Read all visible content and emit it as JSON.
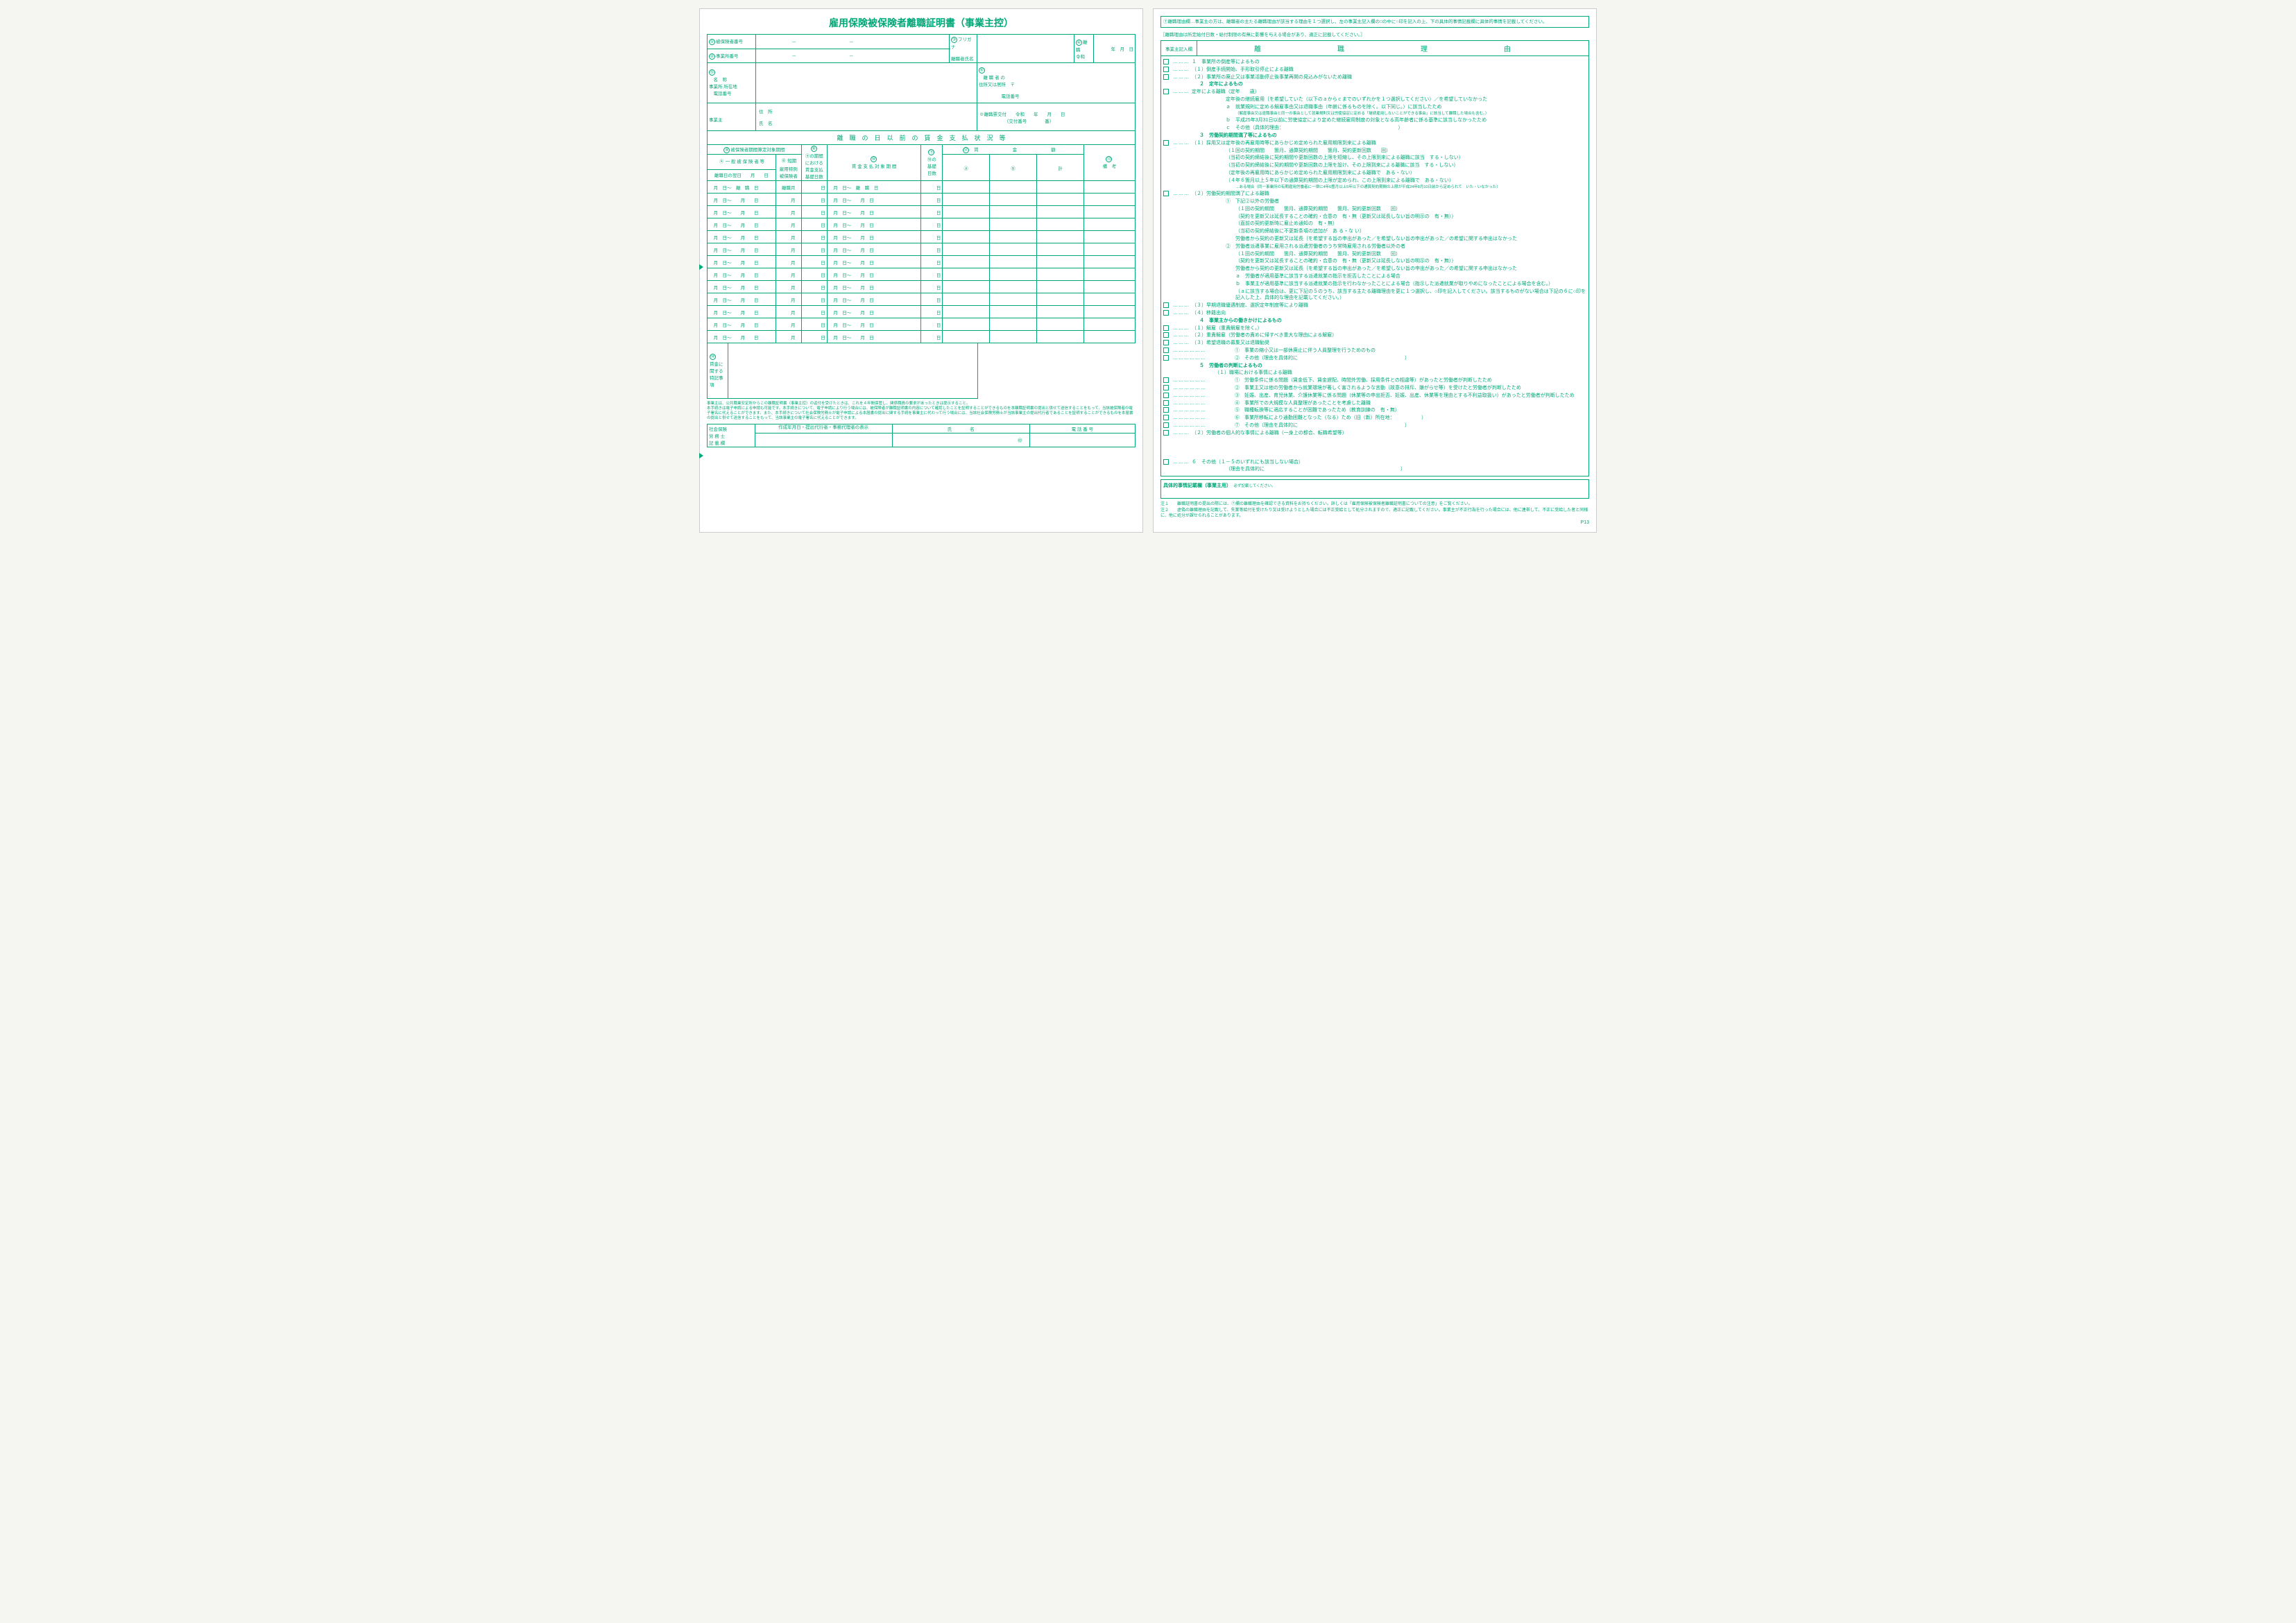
{
  "colors": {
    "ink": "#00a878",
    "paper": "#ffffff",
    "bg": "#f5f5f2"
  },
  "left": {
    "title": "雇用保険被保険者離職証明書（事業主控）",
    "labels": {
      "f1": "被保険者番号",
      "f2": "事業所番号",
      "f3": "フリガナ",
      "f3b": "離職者氏名",
      "f4": "離　職",
      "f4era": "令和",
      "f4ymd": "年　月　日",
      "f5": "名　称",
      "f5b": "事業所 所在地",
      "f5c": "電話番号",
      "f6": "離 職 者 の",
      "f6b": "住所又は居所",
      "f6c": "〒",
      "f6d": "電話番号",
      "f7a": "※離職票交付",
      "f7b": "令和　　年　　月　　日",
      "f7c": "（交付番号　　　　番）",
      "owner": "事業主",
      "ownerAddr": "住　所",
      "ownerName": "氏　名",
      "section": "離　職　の　日　以　前　の　賃　金　支　払　状　況　等",
      "c8": "被保険者期間算定対象期間",
      "c9": "⑨の期間",
      "c9a": "における",
      "c9b": "賃金支払",
      "c9c": "基礎日数",
      "c8a": "一 般 被 保 険 者 等",
      "c8b": "短期",
      "c8c": "雇用特例",
      "c8d": "被保険者",
      "c10": "賃 金 支 払 対 象 期 間",
      "c11": "⑩の",
      "c11b": "基礎",
      "c11c": "日数",
      "c12": "賃　　金　　額",
      "c12a": "Ⓐ",
      "c12b": "Ⓑ",
      "c12c": "計",
      "c13": "備　考",
      "dateHdr": "離職日の翌日　　月　　日",
      "f14": "賃金に",
      "f14b": "関する",
      "f14c": "特記事項",
      "bottomNote": "事業主は、公共職業安定所からこの離職証明書（事業主控）の返付を受けたときは、これを４年間保管し、関係職員の要求があったときは提示すること。\n本手続きは電子申請による申請も可能です。本手続きについて、電子申請により行う場合には、被保険者が離職証明書の内容について確認したことを証明することができるものを本離職証明書の提出と併せて送信することをもって、当該被保険者の電子署名に代えることができます。また、本手続きについて社会保険労務士が電子申請による本届書の提出に関する手続を事業主に代わって行う場合には、当該社会保険労務士が当該事業主の提出代行者であることを証明することができるものを本届書の提出と併せて送信することをもって、当該事業主の電子署名に代えることができます。",
      "srBox": "社会保険",
      "srBox2": "労 務 士",
      "srBox3": "記 載 欄",
      "srCol1": "作成年月日・提出代行者・事務代理者の表示",
      "srCol2": "氏　　　　名",
      "srCol3": "電 話 番 号",
      "seal": "㊞"
    },
    "monthRows": 13
  },
  "right": {
    "topNote": "⑦離職理由欄…事業主の方は、離職者の主たる離職理由が該当する理由を１つ選択し、左の事業主記入欄の□の中に○印を記入の上、下の具体的事情記載欄に具体的事情を記載してください。",
    "subNote": "［離職理由は所定給付日数・給付制限の有無に影響を与える場合があり、適正に記載してください。］",
    "colHdr": "事業主記入欄",
    "reasonTitle": "離　　職　　理　　由",
    "reasons": [
      {
        "cb": 1,
        "t": "１　事業所の倒産等によるもの"
      },
      {
        "cb": 1,
        "d": 1,
        "t": "（１）倒産手続開始、手形取引停止による離職"
      },
      {
        "cb": 1,
        "d": 1,
        "t": "（２）事業所の廃止又は事業活動停止後事業再開の見込みがないため離職"
      },
      {
        "cb": 0,
        "t": "２　定年によるもの",
        "b": 1
      },
      {
        "cb": 1,
        "d": 1,
        "t": "定年による離職（定年　　歳）"
      },
      {
        "cb": 0,
        "i": 2,
        "t": "定年後の継続雇用｛を希望していた（以下のａからｃまでのいずれかを１つ選択してください）／を希望していなかった"
      },
      {
        "cb": 0,
        "i": 2,
        "t": "ａ　就業規則に定める解雇事由又は退職事由（年齢に係るものを除く。以下同じ。）に該当したため"
      },
      {
        "cb": 0,
        "i": 3,
        "t": "（解雇事由又は退職事由と同一の事由として就業規則又は労使協定に定める「継続雇用しないことができる事由」に該当して離職した場合も含む。）",
        "tiny": 1
      },
      {
        "cb": 0,
        "i": 2,
        "t": "ｂ　平成25年3月31日以前に労使協定により定めた継続雇用制度の対象となる高年齢者に係る基準に該当しなかったため"
      },
      {
        "cb": 0,
        "i": 2,
        "t": "ｃ　その他（具体的理由：　　　　　　　　　　　　　　　　　　　　　　　　）"
      },
      {
        "cb": 0,
        "t": "３　労働契約期間満了等によるもの",
        "b": 1
      },
      {
        "cb": 1,
        "d": 1,
        "t": "（１）採用又は定年後の再雇用時等にあらかじめ定められた雇用期限到来による離職"
      },
      {
        "cb": 0,
        "i": 2,
        "t": "（１回の契約期間　　箇月、通算契約期間　　箇月、契約更新回数　　回）"
      },
      {
        "cb": 0,
        "i": 2,
        "t": "（当初の契約締結後に契約期間や更新回数の上限を短縮し、その上限到来による離職に該当　する・しない）"
      },
      {
        "cb": 0,
        "i": 2,
        "t": "（当初の契約締結後に契約期間や更新回数の上限を設け、その上限到来による離職に該当　する・しない）"
      },
      {
        "cb": 0,
        "i": 2,
        "t": "（定年後の再雇用時にあらかじめ定められた雇用期限到来による離職で　ある・ない）"
      },
      {
        "cb": 0,
        "i": 2,
        "t": "（４年６箇月以上５年以下の通算契約期間の上限が定められ、この上限到来による離職で　ある・ない）"
      },
      {
        "cb": 0,
        "i": 3,
        "t": "→ある場合（同一事業所の有期雇用労働者に一律に4年6箇月以上5年以下の通算契約期間の上限が平成24年8月10日前から定められて　いた・いなかった）",
        "tiny": 1
      },
      {
        "cb": 1,
        "d": 1,
        "t": "（２）労働契約期間満了による離職"
      },
      {
        "cb": 0,
        "i": 2,
        "t": "①　下記②以外の労働者"
      },
      {
        "cb": 0,
        "i": 3,
        "t": "（１回の契約期間　　箇月、通算契約期間　　箇月、契約更新回数　　回）"
      },
      {
        "cb": 0,
        "i": 3,
        "t": "（契約を更新又は延長することの確約・合意の　有・無（更新又は延長しない旨の明示の　有・無））"
      },
      {
        "cb": 0,
        "i": 3,
        "t": "（直前の契約更新時に雇止め通知の　有・無）"
      },
      {
        "cb": 0,
        "i": 3,
        "t": "（当初の契約締結後に不更新条項の追加が　あ る・な い）"
      },
      {
        "cb": 0,
        "i": 3,
        "t": "労働者から契約の更新又は延長｛を希望する旨の申出があった／を希望しない旨の申出があった／の希望に関する申出はなかった"
      },
      {
        "cb": 0,
        "i": 2,
        "t": "②　労働者派遣事業に雇用される派遣労働者のうち常時雇用される労働者以外の者"
      },
      {
        "cb": 0,
        "i": 3,
        "t": "（１回の契約期間　　箇月、通算契約期間　　箇月、契約更新回数　　回）"
      },
      {
        "cb": 0,
        "i": 3,
        "t": "（契約を更新又は延長することの確約・合意の　有・無（更新又は延長しない旨の明示の　有・無））"
      },
      {
        "cb": 0,
        "i": 3,
        "t": "労働者から契約の更新又は延長｛を希望する旨の申出があった／を希望しない旨の申出があった／の希望に関する申出はなかった"
      },
      {
        "cb": 0,
        "i": 3,
        "t": "ａ　労働者が適用基準に該当する派遣就業の指示を拒否したことによる場合"
      },
      {
        "cb": 0,
        "i": 3,
        "t": "ｂ　事業主が適用基準に該当する派遣就業の指示を行わなかったことによる場合（指示した派遣就業が取りやめになったことによる場合を含む。）"
      },
      {
        "cb": 0,
        "i": 3,
        "t": "（ａに該当する場合は、更に下記の５のうち、該当する主たる離職理由を更に１つ選択し、○印を記入してください。該当するものがない場合は下記の６に○印を記入した上、具体的な理由を記載してください。）"
      },
      {
        "cb": 1,
        "d": 1,
        "t": "（３）早期退職優遇制度、選択定年制度等により離職"
      },
      {
        "cb": 1,
        "d": 1,
        "t": "（４）移籍出向"
      },
      {
        "cb": 0,
        "t": "４　事業主からの働きかけによるもの",
        "b": 1
      },
      {
        "cb": 1,
        "d": 1,
        "t": "（１）解雇（重責解雇を除く。）"
      },
      {
        "cb": 1,
        "d": 1,
        "t": "（２）重責解雇（労働者の責めに帰すべき重大な理由による解雇）"
      },
      {
        "cb": 1,
        "d": 1,
        "t": "（３）希望退職の募集又は退職勧奨"
      },
      {
        "cb": 1,
        "d": 2,
        "i": 2,
        "t": "①　事業の縮小又は一部休廃止に伴う人員整理を行うためのもの"
      },
      {
        "cb": 1,
        "d": 2,
        "i": 2,
        "t": "②　その他（理由を具体的に　　　　　　　　　　　　　　　　　　　　　　）"
      },
      {
        "cb": 0,
        "t": "５　労働者の判断によるもの",
        "b": 1
      },
      {
        "cb": 0,
        "i": 1,
        "t": "（１）職場における事情による離職"
      },
      {
        "cb": 1,
        "d": 2,
        "i": 2,
        "t": "①　労働条件に係る問題（賃金低下、賃金遅配、時間外労働、採用条件との相違等）があったと労働者が判断したため"
      },
      {
        "cb": 1,
        "d": 2,
        "i": 2,
        "t": "②　事業主又は他の労働者から就業環境が著しく害されるような言動（故意の排斥、嫌がらせ等）を受けたと労働者が判断したため"
      },
      {
        "cb": 1,
        "d": 2,
        "i": 2,
        "t": "③　妊娠、出産、育児休業、介護休業等に係る問題（休業等の申出拒否、妊娠、出産、休業等を理由とする不利益取扱い）があったと労働者が判断したため"
      },
      {
        "cb": 1,
        "d": 2,
        "i": 2,
        "t": "④　事業所での大規模な人員整理があったことを考慮した離職"
      },
      {
        "cb": 1,
        "d": 2,
        "i": 2,
        "t": "⑤　職種転換等に適応することが困難であったため（教育訓練の　有・無）"
      },
      {
        "cb": 1,
        "d": 2,
        "i": 2,
        "t": "⑥　事業所移転により通勤困難となった（なる）ため（旧（新）所在地：　　　　　　）"
      },
      {
        "cb": 1,
        "d": 2,
        "i": 2,
        "t": "⑦　その他（理由を具体的に　　　　　　　　　　　　　　　　　　　　　　）"
      },
      {
        "cb": 1,
        "d": 1,
        "t": "（２）労働者の個人的な事情による離職（一身上の都合、転職希望等）"
      },
      {
        "cb": 0,
        "t": "　",
        "sp": 1
      },
      {
        "cb": 1,
        "d": 1,
        "t": "６　その他（１－５のいずれにも該当しない場合）"
      },
      {
        "cb": 0,
        "i": 2,
        "t": "（理由を具体的に　　　　　　　　　　　　　　　　　　　　　　　　　　　　）"
      }
    ],
    "detailBox": "具体的事情記載欄（事業主用）",
    "detailNote": "必ず記載してください。",
    "notes": [
      "注１　　離職証明書の提出の際には、⑦欄の離職理由を確認できる資料をお持ちください。詳しくは「雇用保険被保険者離職証明書についての注意」をご覧ください。",
      "注２　　虚偽の離職理由を記載して、失業等給付を受けたり又は受けようとした場合には不正受給として処分されますので、適正に記載してください。事業主が不正行為を行った場合には、他に連帯して、不正に受給した者と同様に、他に処分が課せられることがあります。"
    ],
    "pageNum": "P13"
  }
}
